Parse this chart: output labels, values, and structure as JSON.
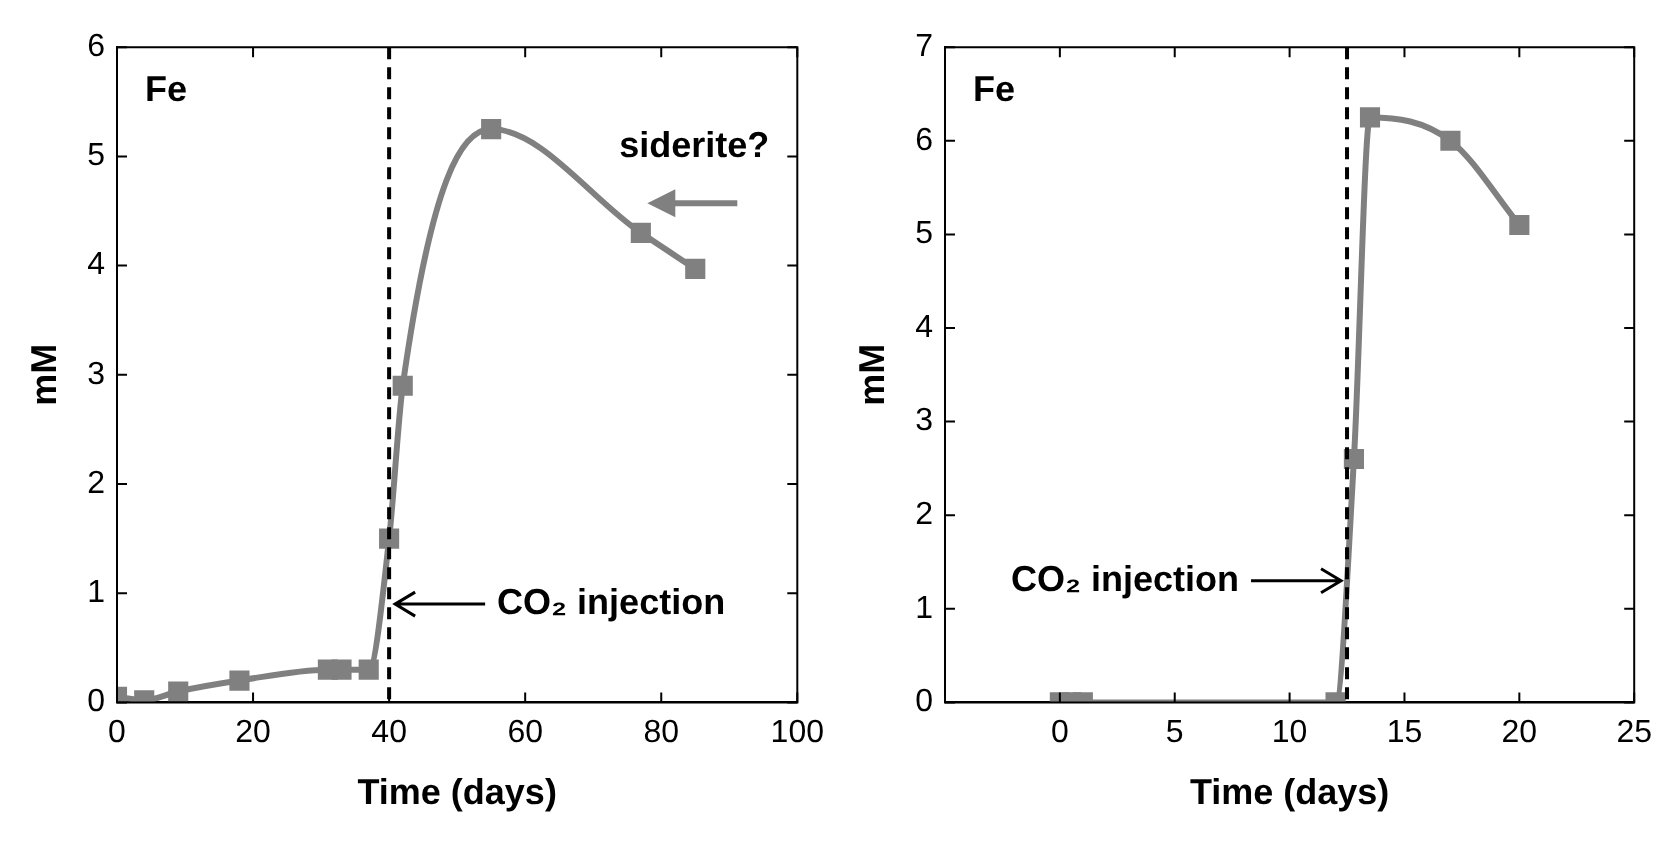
{
  "chart_data": [
    {
      "type": "line",
      "xlabel": "Time (days)",
      "ylabel": "mM",
      "x": [
        0,
        4,
        9,
        18,
        31,
        33,
        37,
        40,
        42,
        55,
        77,
        85
      ],
      "series": [
        {
          "color": "#808080",
          "values": [
            0.05,
            0.02,
            0.1,
            0.2,
            0.3,
            0.3,
            0.3,
            1.5,
            2.9,
            5.25,
            4.3,
            3.97
          ]
        }
      ],
      "xlim": [
        0,
        100
      ],
      "xticks": [
        0,
        20,
        40,
        60,
        80,
        100
      ],
      "ylim": [
        0,
        6
      ],
      "yticks": [
        0,
        1,
        2,
        3,
        4,
        5,
        6
      ],
      "ref_lines": [
        {
          "axis": "x",
          "value": 40,
          "color": "#000000",
          "line_style": "dashed"
        }
      ],
      "annotations": [
        "Fe",
        "siderite?",
        {
          "text": "CO₂ injection",
          "x": 40,
          "y": 0.9
        }
      ],
      "marker": "square",
      "line_style": "solid",
      "grid": false,
      "legend": false
    },
    {
      "type": "line",
      "xlabel": "Time (days)",
      "ylabel": "mM",
      "x": [
        0,
        0.5,
        1,
        12,
        12.8,
        13.5,
        17,
        20
      ],
      "series": [
        {
          "color": "#808080",
          "values": [
            0,
            0,
            0,
            0,
            2.6,
            6.25,
            6.0,
            5.1
          ]
        }
      ],
      "xlim": [
        -5,
        25
      ],
      "xticks": [
        0,
        5,
        10,
        15,
        20,
        25
      ],
      "ylim": [
        0,
        7
      ],
      "yticks": [
        0,
        1,
        2,
        3,
        4,
        5,
        6,
        7
      ],
      "ref_lines": [
        {
          "axis": "x",
          "value": 12.5,
          "color": "#000000",
          "line_style": "dashed"
        }
      ],
      "annotations": [
        "Fe",
        {
          "text": "CO₂ injection",
          "x": 12.5,
          "y": 1.3
        }
      ],
      "marker": "square",
      "line_style": "solid",
      "grid": false,
      "legend": false
    }
  ]
}
